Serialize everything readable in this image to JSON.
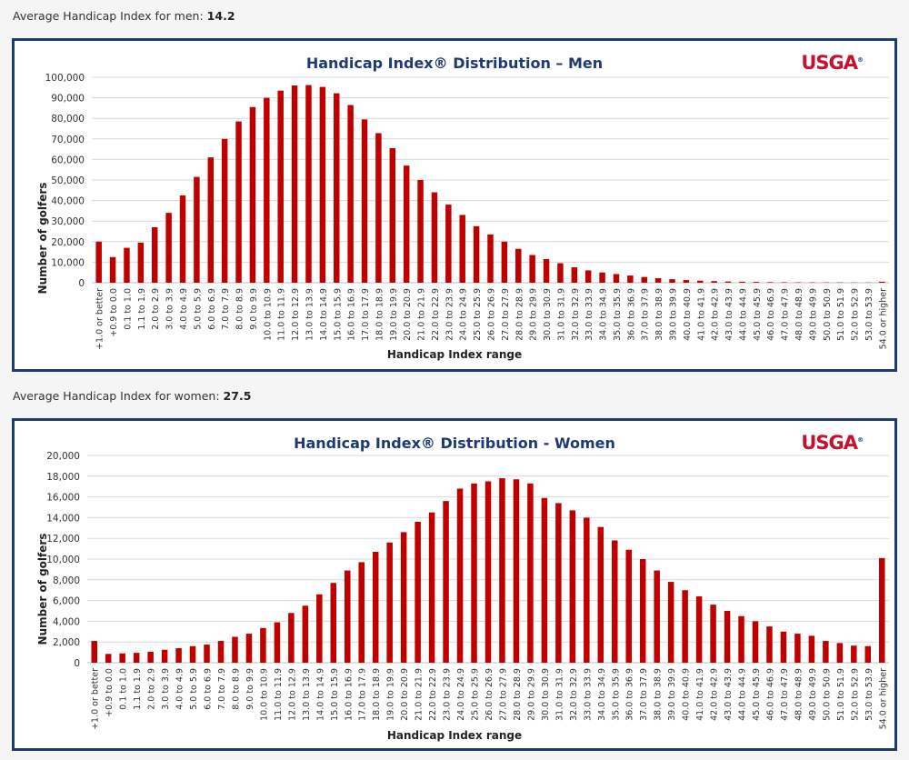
{
  "men_summary": {
    "label": "Average Handicap Index for men:",
    "value": "14.2"
  },
  "women_summary": {
    "label": "Average Handicap Index for women:",
    "value": "27.5"
  },
  "logo_text": "USGA",
  "colors": {
    "bar": "#c00000",
    "frame": "#1f3a73",
    "title": "#1f3a73",
    "logo": "#c8102e",
    "grid": "#d9d9d9"
  },
  "chart_data": [
    {
      "type": "bar",
      "title": "Handicap Index® Distribution – Men",
      "xlabel": "Handicap Index range",
      "ylabel": "Number of golfers",
      "ylim": [
        0,
        100000
      ],
      "yticks": [
        0,
        10000,
        20000,
        30000,
        40000,
        50000,
        60000,
        70000,
        80000,
        90000,
        100000
      ],
      "ytick_labels": [
        "0",
        "10,000",
        "20,000",
        "30,000",
        "40,000",
        "50,000",
        "60,000",
        "70,000",
        "80,000",
        "90,000",
        "100,000"
      ],
      "categories": [
        "+1.0 or better",
        "+0.9 to 0.0",
        "0.1 to 1.0",
        "1.1 to 1.9",
        "2.0 to 2.9",
        "3.0 to 3.9",
        "4.0 to 4.9",
        "5.0 to 5.9",
        "6.0 to 6.9",
        "7.0 to 7.9",
        "8.0 to 8.9",
        "9.0 to 9.9",
        "10.0 to 10.9",
        "11.0 to 11.9",
        "12.0 to 12.9",
        "13.0 to 13.9",
        "14.0 to 14.9",
        "15.0 to 15.9",
        "16.0 to 16.9",
        "17.0 to 17.9",
        "18.0 to 18.9",
        "19.0 to 19.9",
        "20.0 to 20.9",
        "21.0 to 21.9",
        "22.0 to 22.9",
        "23.0 to 23.9",
        "24.0 to 24.9",
        "25.0 to 25.9",
        "26.0 to 26.9",
        "27.0 to 27.9",
        "28.0 to 28.9",
        "29.0 to 29.9",
        "30.0 to 30.9",
        "31.0 to 31.9",
        "32.0 to 32.9",
        "33.0 to 33.9",
        "34.0 to 34.9",
        "35.0 to 35.9",
        "36.0 to 36.9",
        "37.0 to 37.9",
        "38.0 to 38.9",
        "39.0 to 39.9",
        "40.0 to 40.9",
        "41.0 to 41.9",
        "42.0 to 42.9",
        "43.0 to 43.9",
        "44.0 to 44.9",
        "45.0 to 45.9",
        "46.0 to 46.9",
        "47.0 to 47.9",
        "48.0 to 48.9",
        "49.0 to 49.9",
        "50.0 to 50.9",
        "51.0 to 51.9",
        "52.0 to 52.9",
        "53.0 to 53.9",
        "54.0 or higher"
      ],
      "values": [
        20000,
        12500,
        17000,
        19500,
        27000,
        34000,
        42500,
        51500,
        61000,
        70000,
        78500,
        85500,
        90000,
        93500,
        96000,
        96200,
        95300,
        92200,
        86500,
        79500,
        72800,
        65500,
        57000,
        50000,
        44000,
        38000,
        33000,
        27500,
        23500,
        20000,
        16500,
        13500,
        11500,
        9500,
        7500,
        6000,
        5000,
        4200,
        3500,
        2800,
        2200,
        1700,
        1300,
        1000,
        800,
        600,
        500,
        400,
        300,
        250,
        200,
        200,
        150,
        150,
        100,
        100,
        500
      ]
    },
    {
      "type": "bar",
      "title": "Handicap Index® Distribution - Women",
      "xlabel": "Handicap Index range",
      "ylabel": "Number of golfers",
      "ylim": [
        0,
        20000
      ],
      "yticks": [
        0,
        2000,
        4000,
        6000,
        8000,
        10000,
        12000,
        14000,
        16000,
        18000,
        20000
      ],
      "ytick_labels": [
        "0",
        "2,000",
        "4,000",
        "6,000",
        "8,000",
        "10,000",
        "12,000",
        "14,000",
        "16,000",
        "18,000",
        "20,000"
      ],
      "categories": [
        "+1.0 or better",
        "+0.9 to 0.0",
        "0.1 to 1.0",
        "1.1 to 1.9",
        "2.0 to 2.9",
        "3.0 to 3.9",
        "4.0 to 4.9",
        "5.0 to 5.9",
        "6.0 to 6.9",
        "7.0 to 7.9",
        "8.0 to 8.9",
        "9.0 to 9.9",
        "10.0 to 10.9",
        "11.0 to 11.9",
        "12.0 to 12.9",
        "13.0 to 13.9",
        "14.0 to 14.9",
        "15.0 to 15.9",
        "16.0 to 16.9",
        "17.0 to 17.9",
        "18.0 to 18.9",
        "19.0 to 19.9",
        "20.0 to 20.9",
        "21.0 to 21.9",
        "22.0 to 22.9",
        "23.0 to 23.9",
        "24.0 to 24.9",
        "25.0 to 25.9",
        "26.0 to 26.9",
        "27.0 to 27.9",
        "28.0 to 28.9",
        "29.0 to 29.9",
        "30.0 to 30.9",
        "31.0 to 31.9",
        "32.0 to 32.9",
        "33.0 to 33.9",
        "34.0 to 34.9",
        "35.0 to 35.9",
        "36.0 to 36.9",
        "37.0 to 37.9",
        "38.0 to 38.9",
        "39.0 to 39.9",
        "40.0 to 40.9",
        "41.0 to 41.9",
        "42.0 to 42.9",
        "43.0 to 43.9",
        "44.0 to 44.9",
        "45.0 to 45.9",
        "46.0 to 46.9",
        "47.0 to 47.9",
        "48.0 to 48.9",
        "49.0 to 49.9",
        "50.0 to 50.9",
        "51.0 to 51.9",
        "52.0 to 52.9",
        "53.0 to 53.9",
        "54.0 or higher"
      ],
      "values": [
        2100,
        850,
        900,
        950,
        1050,
        1250,
        1400,
        1600,
        1750,
        2100,
        2500,
        2800,
        3350,
        3900,
        4800,
        5500,
        6600,
        7700,
        8900,
        9700,
        10700,
        11600,
        12600,
        13600,
        14500,
        15600,
        16800,
        17300,
        17500,
        17800,
        17700,
        17300,
        15900,
        15400,
        14700,
        14000,
        13100,
        11800,
        10900,
        10000,
        8900,
        7800,
        7000,
        6400,
        5600,
        5000,
        4500,
        4000,
        3500,
        3000,
        2800,
        2600,
        2100,
        1900,
        1650,
        1600,
        10100
      ]
    }
  ]
}
